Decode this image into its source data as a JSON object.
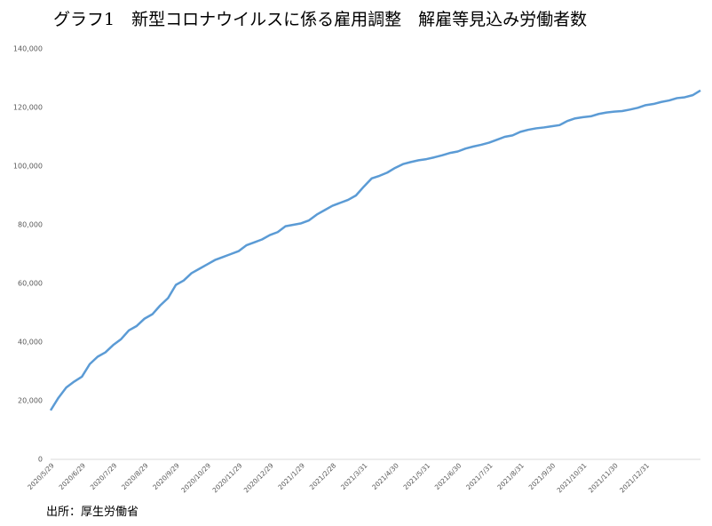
{
  "chart_data": {
    "type": "line",
    "title": "グラフ1　新型コロナウイルスに係る雇用調整　解雇等見込み労働者数",
    "source": "出所：厚生労働省",
    "categories": [
      "2020/5/29",
      null,
      null,
      null,
      "2020/6/29",
      null,
      null,
      null,
      "2020/7/29",
      null,
      null,
      null,
      "2020/8/29",
      null,
      null,
      null,
      "2020/9/29",
      null,
      null,
      null,
      "2020/10/29",
      null,
      null,
      null,
      "2020/11/29",
      null,
      null,
      null,
      "2020/12/29",
      null,
      null,
      null,
      "2021/1/29",
      null,
      null,
      null,
      "2021/2/28",
      null,
      null,
      null,
      "2021/3/31",
      null,
      null,
      null,
      "2021/4/30",
      null,
      null,
      null,
      "2021/5/31",
      null,
      null,
      null,
      "2021/6/30",
      null,
      null,
      null,
      "2021/7/31",
      null,
      null,
      null,
      "2021/8/31",
      null,
      null,
      null,
      "2021/9/30",
      null,
      null,
      null,
      "2021/10/31",
      null,
      null,
      null,
      "2021/11/30",
      null,
      null,
      null,
      "2021/12/31",
      null,
      null,
      null,
      null,
      null,
      null,
      null
    ],
    "series": [
      {
        "name": "解雇等見込み労働者数",
        "color": "#5b9bd5",
        "values": [
          16700,
          21000,
          24500,
          26500,
          28200,
          32500,
          35000,
          36500,
          39000,
          41000,
          44000,
          45500,
          48000,
          49500,
          52500,
          55000,
          59500,
          61000,
          63500,
          65000,
          66500,
          68000,
          69000,
          70000,
          71000,
          73000,
          74000,
          75000,
          76500,
          77500,
          79500,
          80000,
          80500,
          81500,
          83500,
          85000,
          86500,
          87500,
          88500,
          90000,
          93000,
          95800,
          96700,
          97800,
          99400,
          100700,
          101400,
          102000,
          102400,
          103000,
          103700,
          104500,
          105000,
          106000,
          106700,
          107300,
          108000,
          109000,
          110000,
          110500,
          111700,
          112400,
          112900,
          113200,
          113600,
          114000,
          115400,
          116300,
          116700,
          117000,
          117800,
          118300,
          118600,
          118800,
          119300,
          119900,
          120800,
          121200,
          121900,
          122400,
          123200,
          123500,
          124200,
          125800
        ]
      }
    ],
    "ylim": [
      0,
      140000
    ],
    "yticks": [
      0,
      {
        "value": 20000,
        "label": "20,000"
      },
      {
        "value": 40000,
        "label": "40,000"
      },
      {
        "value": 60000,
        "label": "60,000"
      },
      {
        "value": 80000,
        "label": "80,000"
      },
      {
        "value": 100000,
        "label": "100,000"
      },
      {
        "value": 120000,
        "label": "120,000"
      },
      {
        "value": 140000,
        "label": "140,000"
      }
    ],
    "grid": false
  }
}
